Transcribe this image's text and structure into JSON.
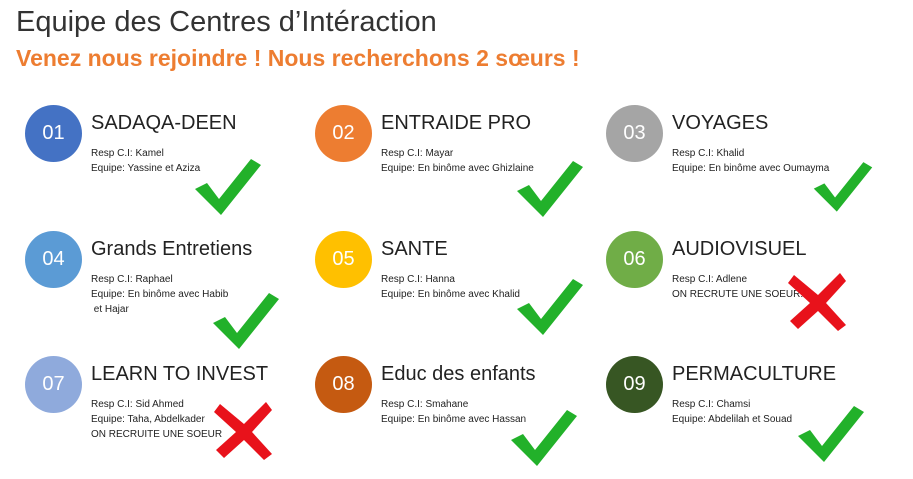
{
  "header": {
    "title": "Equipe des Centres d’Intéraction",
    "subtitle": "Venez nous rejoindre ! Nous recherchons 2 sœurs !"
  },
  "status_colors": {
    "ok": "#22b12a",
    "missing": "#e8121b"
  },
  "cards": [
    {
      "num": "01",
      "name": "SADAQA-DEEN",
      "color": "#4472c4",
      "lines": [
        "Resp C.I: Kamel",
        "Equipe: Yassine et Aziza"
      ],
      "status": "check"
    },
    {
      "num": "02",
      "name": "ENTRAIDE PRO",
      "color": "#ed7d31",
      "lines": [
        "Resp C.I: Mayar",
        "Equipe: En binôme avec Ghizlaine"
      ],
      "status": "check"
    },
    {
      "num": "03",
      "name": "VOYAGES",
      "color": "#a5a5a5",
      "lines": [
        "Resp C.I: Khalid",
        "Equipe: En binôme avec Oumayma"
      ],
      "status": "check"
    },
    {
      "num": "04",
      "name": "Grands Entretiens",
      "color": "#5b9bd5",
      "lines": [
        "Resp C.I: Raphael",
        "Equipe: En binôme avec Habib",
        " et Hajar"
      ],
      "status": "check"
    },
    {
      "num": "05",
      "name": "SANTE",
      "color": "#ffc000",
      "lines": [
        "Resp C.I: Hanna",
        "Equipe: En binôme avec Khalid"
      ],
      "status": "check"
    },
    {
      "num": "06",
      "name": "AUDIOVISUEL",
      "color": "#70ad47",
      "lines": [
        "Resp C.I: Adlene",
        "ON RECRUTE UNE SOEUR!"
      ],
      "status": "cross"
    },
    {
      "num": "07",
      "name": "LEARN TO INVEST",
      "color": "#8faadc",
      "lines": [
        "Resp C.I: Sid Ahmed",
        "Equipe: Taha, Abdelkader",
        "ON RECRUITE UNE SOEUR"
      ],
      "status": "cross"
    },
    {
      "num": "08",
      "name": "Educ des enfants",
      "color": "#c55a11",
      "lines": [
        "Resp C.I: Smahane",
        "Equipe: En binôme avec Hassan"
      ],
      "status": "check"
    },
    {
      "num": "09",
      "name": "PERMACULTURE",
      "color": "#375623",
      "lines": [
        "Resp C.I: Chamsi",
        "Equipe: Abdelilah et Souad"
      ],
      "status": "check"
    }
  ]
}
